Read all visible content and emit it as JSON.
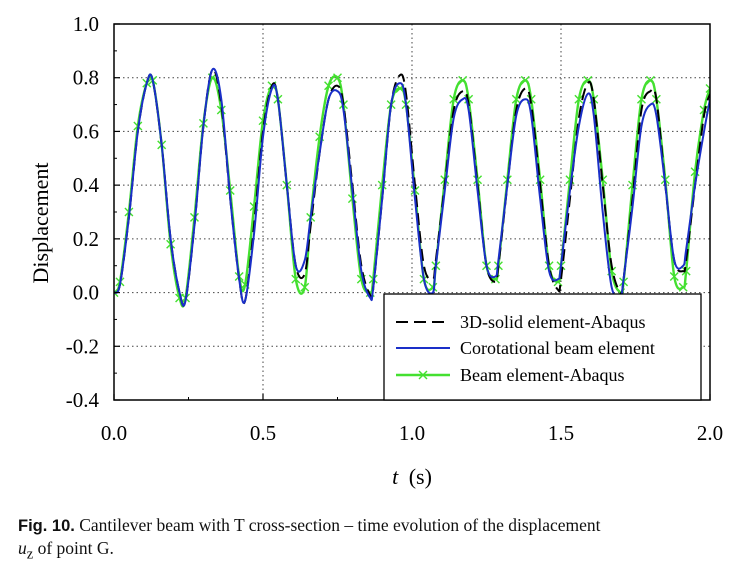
{
  "caption": {
    "label": "Fig. 10.",
    "text": "Cantilever beam with T cross-section – time evolution of the displacement",
    "var_symbol": "u",
    "var_subscript": "z",
    "text2": "of point G."
  },
  "chart_data": {
    "type": "line",
    "title": "",
    "xlabel_symbol": "t",
    "xlabel_unit": "(s)",
    "ylabel": "Displacement",
    "xlim": [
      0.0,
      2.0
    ],
    "ylim": [
      -0.4,
      1.0
    ],
    "x_ticks": [
      0.0,
      0.5,
      1.0,
      1.5,
      2.0
    ],
    "x_tick_labels": [
      "0.0",
      "0.5",
      "1.0",
      "1.5",
      "2.0"
    ],
    "y_ticks": [
      -0.4,
      -0.2,
      0.0,
      0.2,
      0.4,
      0.6,
      0.8,
      1.0
    ],
    "y_tick_labels": [
      "-0.4",
      "-0.2",
      "0.0",
      "0.2",
      "0.4",
      "0.6",
      "0.8",
      "1.0"
    ],
    "grid": "dotted, x and y",
    "legend_placement": "bottom-right",
    "series": [
      {
        "name": "3D-solid element-Abaqus",
        "color": "#000000",
        "style": "dashed",
        "x": [
          0.0,
          0.02,
          0.05,
          0.08,
          0.11,
          0.13,
          0.16,
          0.19,
          0.22,
          0.24,
          0.27,
          0.3,
          0.33,
          0.36,
          0.39,
          0.42,
          0.44,
          0.47,
          0.5,
          0.53,
          0.55,
          0.58,
          0.61,
          0.64,
          0.66,
          0.69,
          0.72,
          0.75,
          0.77,
          0.8,
          0.83,
          0.86,
          0.87,
          0.9,
          0.93,
          0.96,
          0.98,
          1.01,
          1.04,
          1.07,
          1.08,
          1.11,
          1.14,
          1.17,
          1.19,
          1.22,
          1.25,
          1.28,
          1.29,
          1.32,
          1.35,
          1.38,
          1.4,
          1.43,
          1.46,
          1.49,
          1.5,
          1.53,
          1.56,
          1.59,
          1.61,
          1.64,
          1.67,
          1.7,
          1.71,
          1.74,
          1.77,
          1.8,
          1.82,
          1.85,
          1.88,
          1.91,
          1.92,
          1.95,
          1.98,
          2.0
        ],
        "y": [
          0.0,
          0.03,
          0.28,
          0.6,
          0.78,
          0.79,
          0.55,
          0.2,
          0.0,
          -0.03,
          0.25,
          0.62,
          0.83,
          0.7,
          0.35,
          0.05,
          -0.03,
          0.25,
          0.6,
          0.77,
          0.72,
          0.4,
          0.1,
          0.07,
          0.25,
          0.52,
          0.72,
          0.77,
          0.7,
          0.4,
          0.1,
          -0.01,
          0.02,
          0.35,
          0.7,
          0.81,
          0.74,
          0.4,
          0.1,
          0.05,
          0.12,
          0.4,
          0.68,
          0.75,
          0.7,
          0.4,
          0.1,
          0.04,
          0.1,
          0.4,
          0.68,
          0.76,
          0.7,
          0.4,
          0.1,
          0.01,
          0.05,
          0.35,
          0.65,
          0.78,
          0.72,
          0.4,
          0.1,
          0.0,
          0.05,
          0.35,
          0.68,
          0.75,
          0.72,
          0.4,
          0.12,
          0.08,
          0.12,
          0.4,
          0.66,
          0.74
        ]
      },
      {
        "name": "Corotational beam element",
        "color": "#1a2fc8",
        "style": "solid",
        "x": [
          0.0,
          0.02,
          0.05,
          0.08,
          0.11,
          0.13,
          0.16,
          0.19,
          0.22,
          0.24,
          0.27,
          0.3,
          0.33,
          0.36,
          0.39,
          0.42,
          0.44,
          0.47,
          0.5,
          0.53,
          0.55,
          0.58,
          0.61,
          0.64,
          0.66,
          0.69,
          0.72,
          0.75,
          0.77,
          0.8,
          0.83,
          0.86,
          0.87,
          0.9,
          0.93,
          0.96,
          0.98,
          1.01,
          1.04,
          1.07,
          1.08,
          1.11,
          1.14,
          1.17,
          1.19,
          1.22,
          1.25,
          1.28,
          1.29,
          1.32,
          1.35,
          1.38,
          1.4,
          1.43,
          1.46,
          1.49,
          1.5,
          1.53,
          1.56,
          1.59,
          1.61,
          1.64,
          1.67,
          1.7,
          1.71,
          1.74,
          1.77,
          1.8,
          1.82,
          1.85,
          1.88,
          1.91,
          1.92,
          1.95,
          1.98,
          2.0
        ],
        "y": [
          0.0,
          0.03,
          0.28,
          0.6,
          0.78,
          0.79,
          0.55,
          0.2,
          0.0,
          -0.03,
          0.25,
          0.62,
          0.83,
          0.72,
          0.35,
          0.05,
          -0.03,
          0.22,
          0.58,
          0.76,
          0.72,
          0.4,
          0.1,
          0.12,
          0.28,
          0.52,
          0.72,
          0.75,
          0.68,
          0.38,
          0.08,
          -0.02,
          0.02,
          0.35,
          0.7,
          0.78,
          0.7,
          0.35,
          0.05,
          0.0,
          0.1,
          0.38,
          0.65,
          0.72,
          0.68,
          0.38,
          0.1,
          0.06,
          0.12,
          0.4,
          0.66,
          0.72,
          0.66,
          0.35,
          0.08,
          0.05,
          0.1,
          0.38,
          0.62,
          0.74,
          0.66,
          0.3,
          0.02,
          -0.01,
          0.05,
          0.32,
          0.62,
          0.7,
          0.66,
          0.4,
          0.12,
          0.1,
          0.16,
          0.4,
          0.6,
          0.72
        ]
      },
      {
        "name": "Beam element-Abaqus",
        "color": "#44e030",
        "style": "solid-x-markers",
        "x": [
          0.0,
          0.02,
          0.05,
          0.08,
          0.11,
          0.13,
          0.16,
          0.19,
          0.22,
          0.24,
          0.27,
          0.3,
          0.33,
          0.36,
          0.39,
          0.42,
          0.44,
          0.47,
          0.5,
          0.53,
          0.55,
          0.58,
          0.61,
          0.64,
          0.66,
          0.69,
          0.72,
          0.75,
          0.77,
          0.8,
          0.83,
          0.86,
          0.87,
          0.9,
          0.93,
          0.96,
          0.98,
          1.01,
          1.04,
          1.07,
          1.08,
          1.11,
          1.14,
          1.17,
          1.19,
          1.22,
          1.25,
          1.28,
          1.29,
          1.32,
          1.35,
          1.38,
          1.4,
          1.43,
          1.46,
          1.49,
          1.5,
          1.53,
          1.56,
          1.59,
          1.61,
          1.64,
          1.67,
          1.7,
          1.71,
          1.74,
          1.77,
          1.8,
          1.82,
          1.85,
          1.88,
          1.91,
          1.92,
          1.95,
          1.98,
          2.0
        ],
        "y": [
          0.0,
          0.04,
          0.3,
          0.62,
          0.78,
          0.79,
          0.55,
          0.18,
          -0.02,
          -0.02,
          0.28,
          0.63,
          0.8,
          0.68,
          0.38,
          0.06,
          0.03,
          0.32,
          0.64,
          0.77,
          0.72,
          0.4,
          0.05,
          0.02,
          0.28,
          0.58,
          0.77,
          0.8,
          0.7,
          0.35,
          0.05,
          0.0,
          0.05,
          0.4,
          0.7,
          0.76,
          0.7,
          0.38,
          0.05,
          0.02,
          0.1,
          0.42,
          0.72,
          0.79,
          0.72,
          0.42,
          0.1,
          0.05,
          0.1,
          0.42,
          0.72,
          0.79,
          0.72,
          0.42,
          0.1,
          0.04,
          0.1,
          0.42,
          0.72,
          0.79,
          0.72,
          0.42,
          0.08,
          0.0,
          0.04,
          0.4,
          0.72,
          0.79,
          0.72,
          0.42,
          0.06,
          0.02,
          0.08,
          0.45,
          0.68,
          0.76
        ]
      }
    ]
  }
}
